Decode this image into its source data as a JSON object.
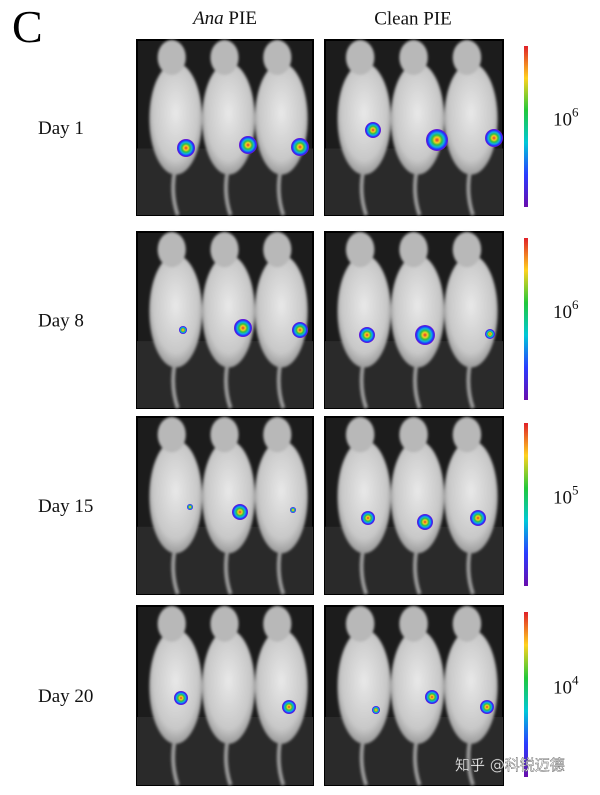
{
  "figure": {
    "panel_letter": "C",
    "columns": [
      {
        "italic": "Ana",
        "text": "PIE"
      },
      {
        "text": "Clean PIE"
      }
    ],
    "rows": [
      {
        "label": "Day 1",
        "scale_base": "10",
        "scale_exponent": "6"
      },
      {
        "label": "Day 8",
        "scale_base": "10",
        "scale_exponent": "6"
      },
      {
        "label": "Day 15",
        "scale_base": "10",
        "scale_exponent": "5"
      },
      {
        "label": "Day 20",
        "scale_base": "10",
        "scale_exponent": "4"
      }
    ],
    "watermark": "知乎 @科锐迈德"
  }
}
